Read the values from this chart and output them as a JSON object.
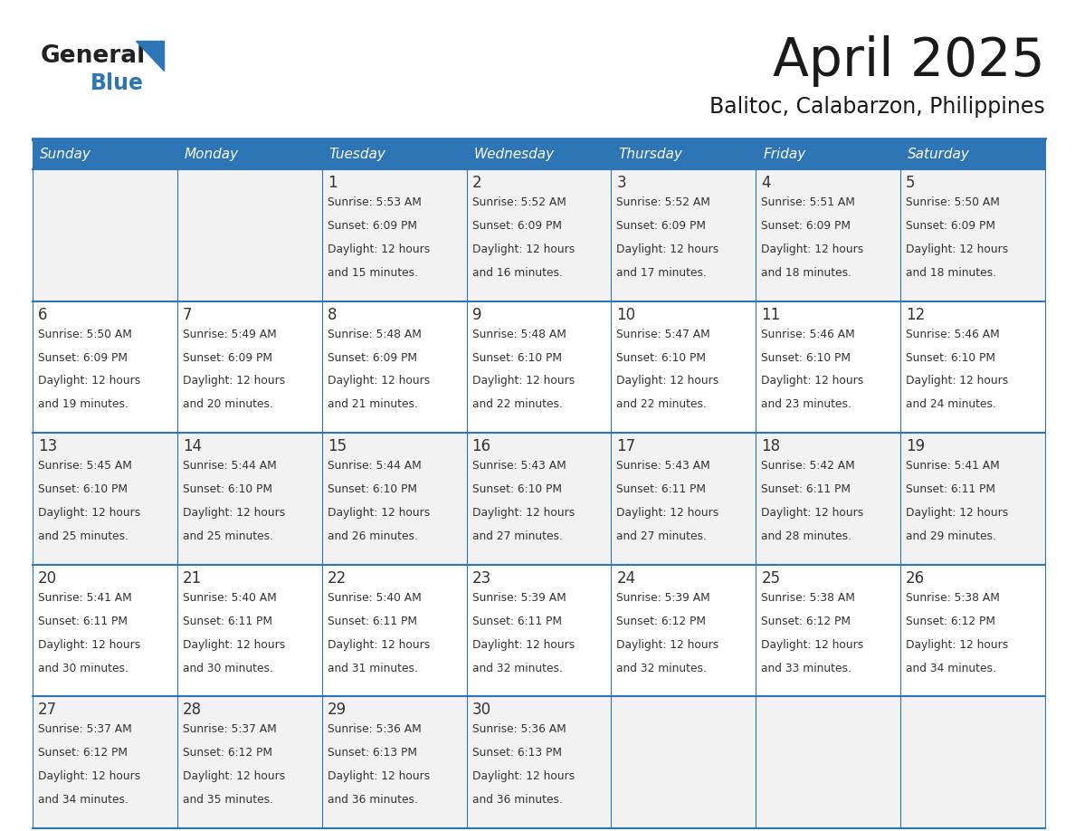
{
  "title": "April 2025",
  "subtitle": "Balitoc, Calabarzon, Philippines",
  "header_color": "#2e75b6",
  "header_text_color": "#ffffff",
  "cell_bg_even": "#f2f2f2",
  "cell_bg_odd": "#ffffff",
  "title_color": "#1a1a1a",
  "text_color": "#333333",
  "days_of_week": [
    "Sunday",
    "Monday",
    "Tuesday",
    "Wednesday",
    "Thursday",
    "Friday",
    "Saturday"
  ],
  "weeks": [
    [
      {
        "day": "",
        "sunrise": "",
        "sunset": "",
        "daylight_hours": 0,
        "daylight_minutes": 0
      },
      {
        "day": "",
        "sunrise": "",
        "sunset": "",
        "daylight_hours": 0,
        "daylight_minutes": 0
      },
      {
        "day": "1",
        "sunrise": "5:53 AM",
        "sunset": "6:09 PM",
        "daylight_hours": 12,
        "daylight_minutes": 15
      },
      {
        "day": "2",
        "sunrise": "5:52 AM",
        "sunset": "6:09 PM",
        "daylight_hours": 12,
        "daylight_minutes": 16
      },
      {
        "day": "3",
        "sunrise": "5:52 AM",
        "sunset": "6:09 PM",
        "daylight_hours": 12,
        "daylight_minutes": 17
      },
      {
        "day": "4",
        "sunrise": "5:51 AM",
        "sunset": "6:09 PM",
        "daylight_hours": 12,
        "daylight_minutes": 18
      },
      {
        "day": "5",
        "sunrise": "5:50 AM",
        "sunset": "6:09 PM",
        "daylight_hours": 12,
        "daylight_minutes": 18
      }
    ],
    [
      {
        "day": "6",
        "sunrise": "5:50 AM",
        "sunset": "6:09 PM",
        "daylight_hours": 12,
        "daylight_minutes": 19
      },
      {
        "day": "7",
        "sunrise": "5:49 AM",
        "sunset": "6:09 PM",
        "daylight_hours": 12,
        "daylight_minutes": 20
      },
      {
        "day": "8",
        "sunrise": "5:48 AM",
        "sunset": "6:09 PM",
        "daylight_hours": 12,
        "daylight_minutes": 21
      },
      {
        "day": "9",
        "sunrise": "5:48 AM",
        "sunset": "6:10 PM",
        "daylight_hours": 12,
        "daylight_minutes": 22
      },
      {
        "day": "10",
        "sunrise": "5:47 AM",
        "sunset": "6:10 PM",
        "daylight_hours": 12,
        "daylight_minutes": 22
      },
      {
        "day": "11",
        "sunrise": "5:46 AM",
        "sunset": "6:10 PM",
        "daylight_hours": 12,
        "daylight_minutes": 23
      },
      {
        "day": "12",
        "sunrise": "5:46 AM",
        "sunset": "6:10 PM",
        "daylight_hours": 12,
        "daylight_minutes": 24
      }
    ],
    [
      {
        "day": "13",
        "sunrise": "5:45 AM",
        "sunset": "6:10 PM",
        "daylight_hours": 12,
        "daylight_minutes": 25
      },
      {
        "day": "14",
        "sunrise": "5:44 AM",
        "sunset": "6:10 PM",
        "daylight_hours": 12,
        "daylight_minutes": 25
      },
      {
        "day": "15",
        "sunrise": "5:44 AM",
        "sunset": "6:10 PM",
        "daylight_hours": 12,
        "daylight_minutes": 26
      },
      {
        "day": "16",
        "sunrise": "5:43 AM",
        "sunset": "6:10 PM",
        "daylight_hours": 12,
        "daylight_minutes": 27
      },
      {
        "day": "17",
        "sunrise": "5:43 AM",
        "sunset": "6:11 PM",
        "daylight_hours": 12,
        "daylight_minutes": 27
      },
      {
        "day": "18",
        "sunrise": "5:42 AM",
        "sunset": "6:11 PM",
        "daylight_hours": 12,
        "daylight_minutes": 28
      },
      {
        "day": "19",
        "sunrise": "5:41 AM",
        "sunset": "6:11 PM",
        "daylight_hours": 12,
        "daylight_minutes": 29
      }
    ],
    [
      {
        "day": "20",
        "sunrise": "5:41 AM",
        "sunset": "6:11 PM",
        "daylight_hours": 12,
        "daylight_minutes": 30
      },
      {
        "day": "21",
        "sunrise": "5:40 AM",
        "sunset": "6:11 PM",
        "daylight_hours": 12,
        "daylight_minutes": 30
      },
      {
        "day": "22",
        "sunrise": "5:40 AM",
        "sunset": "6:11 PM",
        "daylight_hours": 12,
        "daylight_minutes": 31
      },
      {
        "day": "23",
        "sunrise": "5:39 AM",
        "sunset": "6:11 PM",
        "daylight_hours": 12,
        "daylight_minutes": 32
      },
      {
        "day": "24",
        "sunrise": "5:39 AM",
        "sunset": "6:12 PM",
        "daylight_hours": 12,
        "daylight_minutes": 32
      },
      {
        "day": "25",
        "sunrise": "5:38 AM",
        "sunset": "6:12 PM",
        "daylight_hours": 12,
        "daylight_minutes": 33
      },
      {
        "day": "26",
        "sunrise": "5:38 AM",
        "sunset": "6:12 PM",
        "daylight_hours": 12,
        "daylight_minutes": 34
      }
    ],
    [
      {
        "day": "27",
        "sunrise": "5:37 AM",
        "sunset": "6:12 PM",
        "daylight_hours": 12,
        "daylight_minutes": 34
      },
      {
        "day": "28",
        "sunrise": "5:37 AM",
        "sunset": "6:12 PM",
        "daylight_hours": 12,
        "daylight_minutes": 35
      },
      {
        "day": "29",
        "sunrise": "5:36 AM",
        "sunset": "6:13 PM",
        "daylight_hours": 12,
        "daylight_minutes": 36
      },
      {
        "day": "30",
        "sunrise": "5:36 AM",
        "sunset": "6:13 PM",
        "daylight_hours": 12,
        "daylight_minutes": 36
      },
      {
        "day": "",
        "sunrise": "",
        "sunset": "",
        "daylight_hours": 0,
        "daylight_minutes": 0
      },
      {
        "day": "",
        "sunrise": "",
        "sunset": "",
        "daylight_hours": 0,
        "daylight_minutes": 0
      },
      {
        "day": "",
        "sunrise": "",
        "sunset": "",
        "daylight_hours": 0,
        "daylight_minutes": 0
      }
    ]
  ],
  "logo_text_general": "General",
  "logo_text_blue": "Blue",
  "line_color": "#2e75b6",
  "fig_width": 11.88,
  "fig_height": 9.18,
  "dpi": 100
}
